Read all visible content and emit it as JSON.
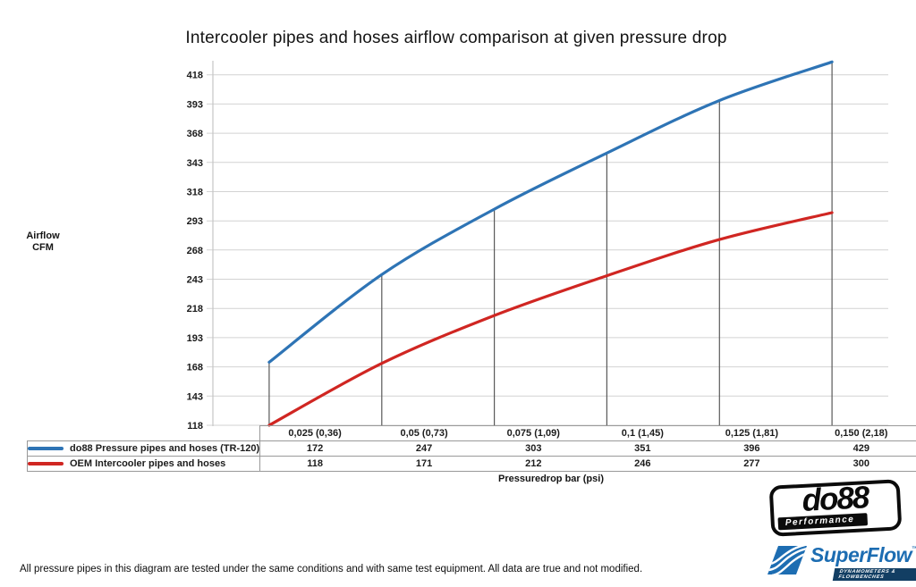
{
  "title": "Intercooler pipes and hoses airflow comparison at given pressure drop",
  "y_axis": {
    "label": [
      "Airflow",
      "CFM"
    ]
  },
  "x_axis": {
    "label": "Pressuredrop bar (psi)"
  },
  "chart_data": {
    "type": "line",
    "title": "Intercooler pipes and hoses airflow comparison at given pressure drop",
    "categories": [
      "0,025 (0,36)",
      "0,05 (0,73)",
      "0,075 (1,09)",
      "0,1 (1,45)",
      "0,125 (1,81)",
      "0,150 (2,18)"
    ],
    "series": [
      {
        "name": "do88 Pressure pipes and hoses (TR-120)",
        "color": "#2e74b5",
        "values": [
          172,
          247,
          303,
          351,
          396,
          429
        ]
      },
      {
        "name": "OEM Intercooler pipes and hoses",
        "color": "#d02622",
        "values": [
          118,
          171,
          212,
          246,
          277,
          300
        ]
      }
    ],
    "xlabel": "Pressuredrop bar (psi)",
    "ylabel": "Airflow CFM",
    "yticks": [
      118,
      143,
      168,
      193,
      218,
      243,
      268,
      293,
      318,
      343,
      368,
      393,
      418
    ],
    "ylim": [
      118,
      430
    ],
    "grid": "horizontal",
    "drop_lines_to_series": "do88 Pressure pipes and hoses (TR-120)",
    "legend_position": "table-left"
  },
  "footer_note": "All pressure pipes in this diagram are tested under the same conditions and with same test equipment. All data are true and not modified.",
  "logos": {
    "do88": {
      "text": "do88",
      "subtext": "Performance"
    },
    "superflow": {
      "text": "SuperFlow",
      "tm": "™",
      "subtext": "DYNAMOMETERS & FLOWBENCHES"
    }
  },
  "colors": {
    "do88_line": "#2e74b5",
    "oem_line": "#d02622",
    "gridline": "#d2d2d2",
    "axis_line": "#c6c6c6",
    "drop_line": "#595959",
    "table_border": "#999999"
  }
}
